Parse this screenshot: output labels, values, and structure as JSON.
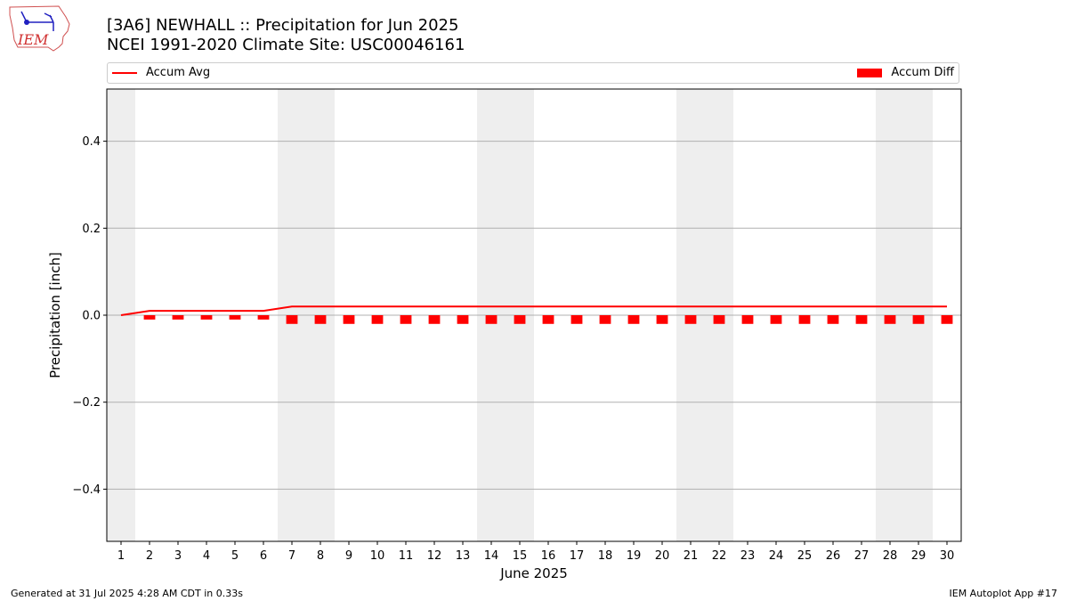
{
  "logo": {
    "text": "IEM"
  },
  "title_line1": "[3A6] NEWHALL :: Precipitation for Jun 2025",
  "title_line2": "NCEI 1991-2020 Climate Site: USC00046161",
  "legend": {
    "avg_label": "Accum Avg",
    "diff_label": "Accum Diff"
  },
  "footer": {
    "left": "Generated at 31 Jul 2025 4:28 AM CDT in 0.33s",
    "right": "IEM Autoplot App #17"
  },
  "colors": {
    "series": "#ff0000",
    "weekend_shade": "#eeeeee",
    "grid": "#b0b0b0"
  },
  "chart_data": {
    "type": "bar",
    "title": "[3A6] NEWHALL :: Precipitation for Jun 2025",
    "xlabel": "June 2025",
    "ylabel": "Precipitation [inch]",
    "ylim": [
      -0.52,
      0.52
    ],
    "yticks": [
      -0.4,
      -0.2,
      0.0,
      0.2,
      0.4
    ],
    "ytick_labels": [
      "−0.4",
      "−0.2",
      "0.0",
      "0.2",
      "0.4"
    ],
    "grid": "horizontal",
    "legend_position": "top",
    "categories": [
      "1",
      "2",
      "3",
      "4",
      "5",
      "6",
      "7",
      "8",
      "9",
      "10",
      "11",
      "12",
      "13",
      "14",
      "15",
      "16",
      "17",
      "18",
      "19",
      "20",
      "21",
      "22",
      "23",
      "24",
      "25",
      "26",
      "27",
      "28",
      "29",
      "30"
    ],
    "weekend_days": [
      1,
      7,
      8,
      14,
      15,
      21,
      22,
      28,
      29
    ],
    "series": [
      {
        "name": "Accum Avg",
        "kind": "line",
        "values": [
          0.0,
          0.01,
          0.01,
          0.01,
          0.01,
          0.01,
          0.02,
          0.02,
          0.02,
          0.02,
          0.02,
          0.02,
          0.02,
          0.02,
          0.02,
          0.02,
          0.02,
          0.02,
          0.02,
          0.02,
          0.02,
          0.02,
          0.02,
          0.02,
          0.02,
          0.02,
          0.02,
          0.02,
          0.02,
          0.02
        ]
      },
      {
        "name": "Accum Diff",
        "kind": "bar",
        "values": [
          0.0,
          -0.01,
          -0.01,
          -0.01,
          -0.01,
          -0.01,
          -0.02,
          -0.02,
          -0.02,
          -0.02,
          -0.02,
          -0.02,
          -0.02,
          -0.02,
          -0.02,
          -0.02,
          -0.02,
          -0.02,
          -0.02,
          -0.02,
          -0.02,
          -0.02,
          -0.02,
          -0.02,
          -0.02,
          -0.02,
          -0.02,
          -0.02,
          -0.02,
          -0.02
        ]
      }
    ]
  }
}
